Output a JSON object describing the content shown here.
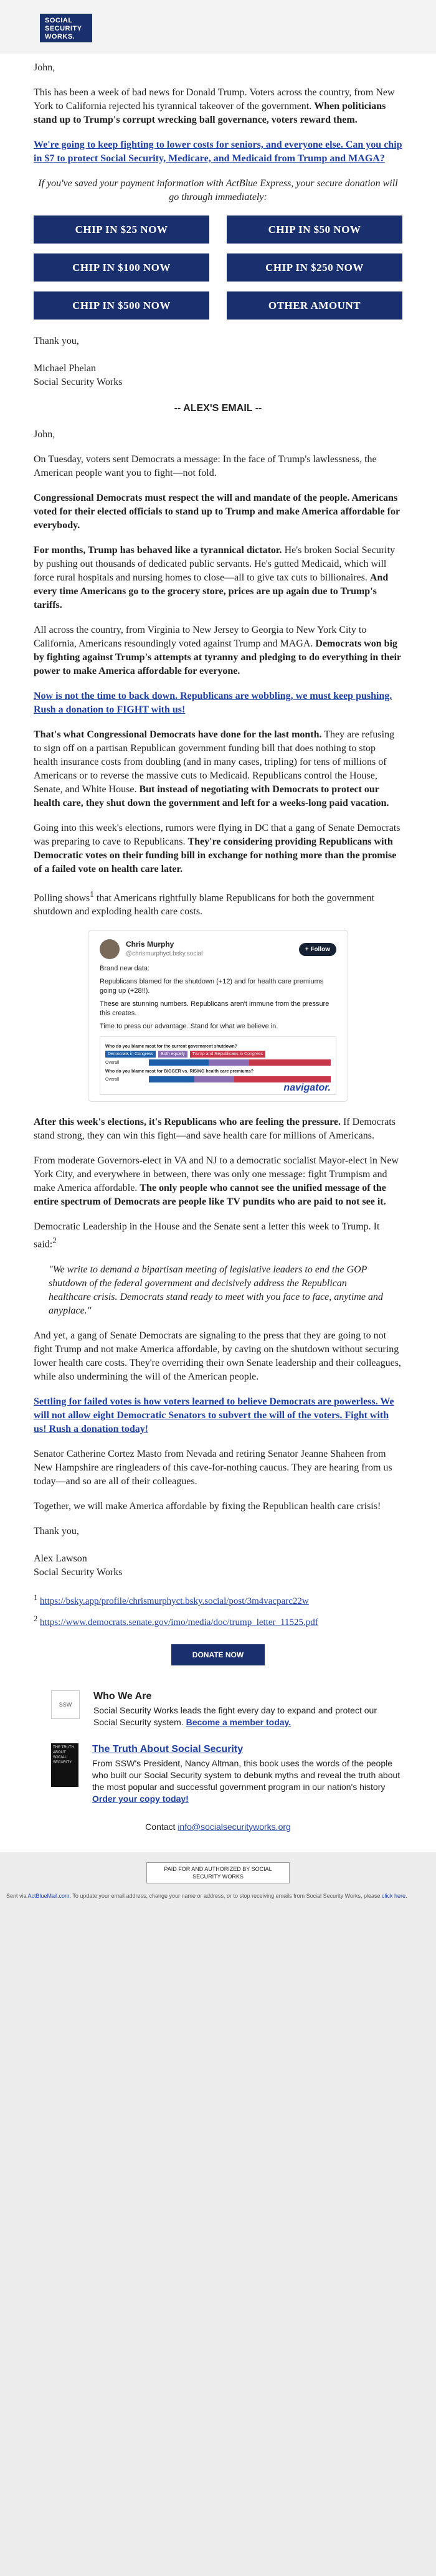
{
  "logo": {
    "line1": "SOCIAL",
    "line2": "SECURITY",
    "line3": "WORKS."
  },
  "greeting": "John,",
  "intro_p1_normal": "This has been a week of bad news for Donald Trump. Voters across the country, from New York to California rejected his tyrannical takeover of the government. ",
  "intro_p1_bold": "When politicians stand up to Trump's corrupt wrecking ball governance, voters reward them.",
  "ask_link": "We're going to keep fighting to lower costs for seniors, and everyone else. Can you chip in $7 to protect Social Security, Medicare, and Medicaid from Trump and MAGA?",
  "actblue_note": "If you've saved your payment information with ActBlue Express, your secure donation will go through immediately:",
  "buttons": [
    "CHIP IN $25 NOW",
    "CHIP IN $50 NOW",
    "CHIP IN $100 NOW",
    "CHIP IN $250 NOW",
    "CHIP IN $500 NOW",
    "OTHER AMOUNT"
  ],
  "signoff1": {
    "thanks": "Thank you,",
    "name": "Michael Phelan",
    "org": "Social Security Works"
  },
  "divider": "-- ALEX'S EMAIL --",
  "greeting2": "John,",
  "p2": "On Tuesday, voters sent Democrats a message: In the face of Trump's lawlessness, the American people want you to fight—not fold.",
  "p3_bold": "Congressional Democrats must respect the will and mandate of the people. Americans voted for their elected officials to stand up to Trump and make America affordable for everybody.",
  "p4_bold1": "For months, Trump has behaved like a tyrannical dictator.",
  "p4_normal": " He's broken Social Security by pushing out thousands of dedicated public servants. He's gutted Medicaid, which will force rural hospitals and nursing homes to close—all to give tax cuts to billionaires. ",
  "p4_bold2": "And every time Americans go to the grocery store, prices are up again due to Trump's tariffs.",
  "p5_normal": "All across the country, from Virginia to New Jersey to Georgia to New York City to California, Americans resoundingly voted against Trump and MAGA. ",
  "p5_bold": "Democrats won big by fighting against Trump's attempts at tyranny and pledging to do everything in their power to make America affordable for everyone.",
  "link2": "Now is not the time to back down. Republicans are wobbling, we must keep pushing. Rush a donation to FIGHT with us!",
  "p6_bold1": "That's what Congressional Democrats have done for the last month.",
  "p6_normal": " They are refusing to sign off on a partisan Republican government funding bill that does nothing to stop health insurance costs from doubling (and in many cases, tripling) for tens of millions of Americans or to reverse the massive cuts to Medicaid. Republicans control the House, Senate, and White House. ",
  "p6_bold2": "But instead of negotiating with Democrats to protect our health care, they shut down the government and left for a weeks-long paid vacation.",
  "p7_normal": "Going into this week's elections, rumors were flying in DC that a gang of Senate Democrats was preparing to cave to Republicans. ",
  "p7_bold": "They're considering providing Republicans with Democratic votes on their funding bill in exchange for nothing more than the promise of a failed vote on health care later.",
  "p8_a": "Polling shows",
  "p8_sup": "1",
  "p8_b": " that Americans rightfully blame Republicans for both the government shutdown and exploding health care costs.",
  "tweet": {
    "name": "Chris Murphy",
    "handle": "@chrismurphyct.bsky.social",
    "follow": "+ Follow",
    "line1": "Brand new data:",
    "line2": "Republicans blamed for the shutdown (+12) and for health care premiums going up (+28!!).",
    "line3": "These are stunning numbers. Republicans aren't immune from the pressure this creates.",
    "line4": "Time to press our advantage. Stand for what we believe in.",
    "q1": "Who do you blame most for the current government shutdown?",
    "q2": "Who do you blame most for BIGGER vs. RISING health care premiums?",
    "legend_dem": "Democrats in Congress",
    "legend_both": "Both equally",
    "legend_trump": "Trump and Republicans in Congress",
    "row_label": "Overall",
    "brand": "navigator."
  },
  "p9_bold": "After this week's elections, it's Republicans who are feeling the pressure.",
  "p9_normal": " If Democrats stand strong, they can win this fight—and save health care for millions of Americans.",
  "p10_normal": "From moderate Governors-elect in VA and NJ to a democratic socialist Mayor-elect in New York City, and everywhere in between, there was only one message: fight Trumpism and make America affordable. ",
  "p10_bold": "The only people who cannot see the unified message of the entire spectrum of Democrats are people like TV pundits who are paid to not see it.",
  "p11_a": "Democratic Leadership in the House and the Senate sent a letter this week to Trump. It said:",
  "p11_sup": "2",
  "quote": "\"We write to demand a bipartisan meeting of legislative leaders to end the GOP shutdown of the federal government and decisively address the Republican healthcare crisis. Democrats stand ready to meet with you face to face, anytime and anyplace.\"",
  "p12": "And yet, a gang of Senate Democrats are signaling to the press that they are going to not fight Trump and not make America affordable, by caving on the shutdown without securing lower health care costs. They're overriding their own Senate leadership and their colleagues, while also undermining the will of the American people.",
  "link3": "Settling for failed votes is how voters learned to believe Democrats are powerless. We will not allow eight Democratic Senators to subvert the will of the voters. Fight with us! Rush a donation today!",
  "p13": "Senator Catherine Cortez Masto from Nevada and retiring Senator Jeanne Shaheen from New Hampshire are ringleaders of this cave-for-nothing caucus. They are hearing from us today—and so are all of their colleagues.",
  "p14": "Together, we will make America affordable by fixing the Republican health care crisis!",
  "signoff2": {
    "thanks": "Thank you,",
    "name": "Alex Lawson",
    "org": "Social Security Works"
  },
  "footnotes": [
    {
      "num": "1",
      "url": "https://bsky.app/profile/chrismurphyct.bsky.social/post/3m4vacparc22w"
    },
    {
      "num": "2",
      "url": "https://www.democrats.senate.gov/imo/media/doc/trump_letter_11525.pdf"
    }
  ],
  "donate": "DONATE NOW",
  "promo1": {
    "title": "Who We Are",
    "text": "Social Security Works leads the fight every day to expand and protect our Social Security system. ",
    "link": "Become a member today."
  },
  "promo2": {
    "title": "The Truth About Social Security",
    "text": "From SSW's President, Nancy Altman, this book uses the words of the people who built our Social Security system to debunk myths and reveal the truth about the most popular and successful government program in our nation's history ",
    "link": "Order your copy today!",
    "book_text": "THE TRUTH ABOUT SOCIAL SECURITY"
  },
  "contact": {
    "label": "Contact ",
    "email": "info@socialsecurityworks.org"
  },
  "paid_for": "PAID FOR AND AUTHORIZED BY SOCIAL SECURITY WORKS",
  "unsub": {
    "a": "Sent via ",
    "actblue": "ActBlueMail.com",
    "b": ". To update your email address, change your name or address, or to stop receiving emails from Social Security Works, please ",
    "click": "click here",
    "c": "."
  },
  "chart_data": {
    "type": "bar",
    "title": "Who do you blame most for the current government shutdown?",
    "categories": [
      "Shutdown (Overall)",
      "Health care premiums (Overall)"
    ],
    "series": [
      {
        "name": "Democrats in Congress",
        "values": [
          33,
          25
        ]
      },
      {
        "name": "Both equally",
        "values": [
          22,
          22
        ]
      },
      {
        "name": "Trump and Republicans in Congress",
        "values": [
          45,
          53
        ]
      }
    ],
    "xlabel": "",
    "ylabel": "",
    "ylim": [
      0,
      100
    ]
  },
  "colors": {
    "navy": "#1a2f6e",
    "link": "#1f3fa9",
    "dem": "#1f5fa9",
    "both": "#8a6db0",
    "rep": "#c9364a"
  }
}
